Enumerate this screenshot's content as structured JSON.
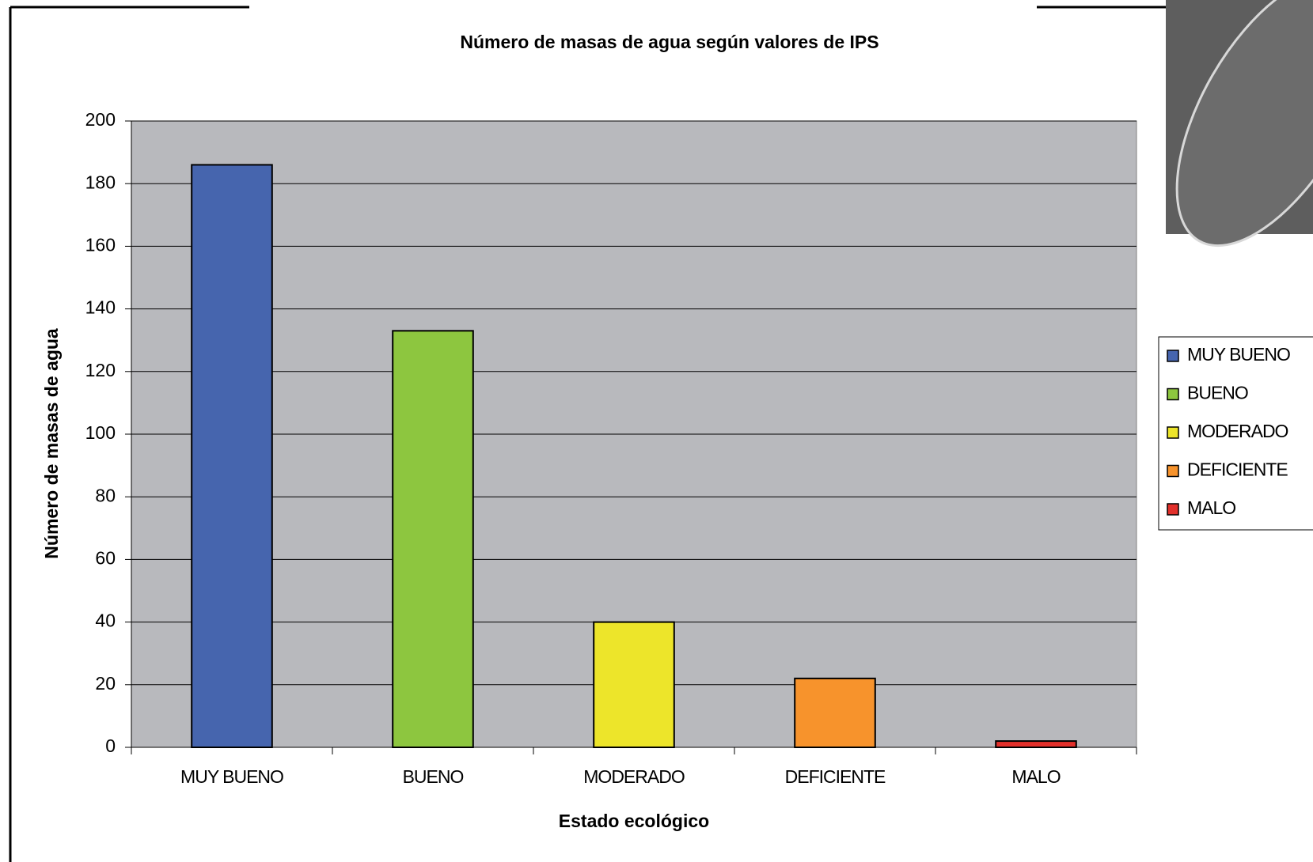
{
  "chart_data": {
    "type": "bar",
    "title": "Número de masas de agua según valores de IPS",
    "xlabel": "Estado ecológico",
    "ylabel": "Número de masas de agua",
    "categories": [
      "MUY BUENO",
      "BUENO",
      "MODERADO",
      "DEFICIENTE",
      "MALO"
    ],
    "values": [
      186,
      133,
      40,
      22,
      2
    ],
    "colors": [
      "#4665ae",
      "#8dc63f",
      "#ede52a",
      "#f7932c",
      "#e2302b"
    ],
    "ylim": [
      0,
      200
    ],
    "yticks": [
      0,
      20,
      40,
      60,
      80,
      100,
      120,
      140,
      160,
      180,
      200
    ],
    "grid": true,
    "legend": "right"
  }
}
